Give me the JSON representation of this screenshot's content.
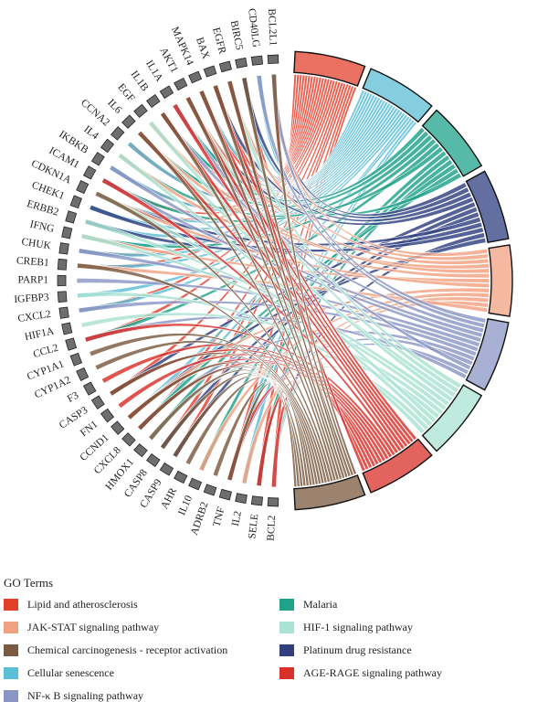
{
  "figure": {
    "genes": [
      "BCL2L1",
      "CD40LG",
      "BIRC5",
      "EGFR",
      "BAX",
      "MAPK14",
      "AKT1",
      "IL1A",
      "IL1B",
      "EGF",
      "IL6",
      "CCNA2",
      "IL4",
      "IKBKB",
      "ICAM1",
      "CDKN1A",
      "CHEK1",
      "ERBB2",
      "IFNG",
      "CHUK",
      "CREB1",
      "PARP1",
      "IGFBP3",
      "CXCL2",
      "HIF1A",
      "CCL2",
      "CYP1A1",
      "CYP1A2",
      "F3",
      "CASP3",
      "FN1",
      "CCND1",
      "CXCL8",
      "HMOX1",
      "CASP8",
      "CASP9",
      "AHR",
      "IL10",
      "ADRB2",
      "TNF",
      "IL2",
      "SELE",
      "BCL2"
    ],
    "gene_block_color": "#6e6e6e",
    "pathways_clockwise": [
      {
        "key": "lipid",
        "color": "#e3402c"
      },
      {
        "key": "cellular",
        "color": "#5bbdd6"
      },
      {
        "key": "malaria",
        "color": "#1fa28a"
      },
      {
        "key": "platinum",
        "color": "#2f3f80"
      },
      {
        "key": "jakstat",
        "color": "#f1a283"
      },
      {
        "key": "nfkb",
        "color": "#8b96c4"
      },
      {
        "key": "hif1",
        "color": "#a9e3d3"
      },
      {
        "key": "agerage",
        "color": "#d9302a"
      },
      {
        "key": "chemical",
        "color": "#7a5a40"
      }
    ],
    "links": {
      "lipid": [
        "BCL2L1",
        "BIRC5",
        "BAX",
        "MAPK14",
        "AKT1",
        "IL1A",
        "IL1B",
        "IL6",
        "CCNA2",
        "IKBKB",
        "ICAM1",
        "CDKN1A",
        "CHUK",
        "CREB1",
        "CXCL2",
        "CCL2",
        "CASP3",
        "CXCL8",
        "CASP8",
        "CASP9",
        "TNF",
        "SELE",
        "BCL2"
      ],
      "cellular": [
        "CD40LG",
        "BIRC5",
        "EGFR",
        "MAPK14",
        "AKT1",
        "IL1A",
        "IL1B",
        "IL6",
        "CCNA2",
        "IKBKB",
        "CDKN1A",
        "CHEK1",
        "ERBB2",
        "IFNG",
        "CHUK",
        "CREB1",
        "IGFBP3",
        "CXCL2",
        "CXCL8",
        "CCND1",
        "TNF",
        "IL2"
      ],
      "malaria": [
        "IL1B",
        "IL6",
        "ICAM1",
        "IFNG",
        "CCL2",
        "IL4",
        "IL10",
        "TNF",
        "SELE",
        "HMOX1",
        "CXCL8",
        "IL1A"
      ],
      "platinum": [
        "BCL2L1",
        "BIRC5",
        "BAX",
        "AKT1",
        "CASP3",
        "CASP8",
        "CASP9",
        "CDKN1A",
        "ERBB2",
        "CHEK1",
        "BCL2",
        "CCND1"
      ],
      "jakstat": [
        "BCL2L1",
        "EGFR",
        "AKT1",
        "IL6",
        "EGF",
        "IL4",
        "IFNG",
        "CDKN1A",
        "CCND1",
        "IL10",
        "IL2",
        "BCL2",
        "CREB1"
      ],
      "nfkb": [
        "BCL2L1",
        "CD40LG",
        "IL1B",
        "IKBKB",
        "ICAM1",
        "CHUK",
        "PARP1",
        "CXCL2",
        "CXCL8",
        "TNF",
        "IL1A",
        "BCL2",
        "CCL2"
      ],
      "hif1": [
        "EGFR",
        "AKT1",
        "IL6",
        "EGF",
        "ERBB2",
        "IFNG",
        "HIF1A",
        "HMOX1",
        "IL4",
        "CDKN1A",
        "BCL2",
        "IGFBP3"
      ],
      "agerage": [
        "BAX",
        "MAPK14",
        "AKT1",
        "IL1A",
        "IL1B",
        "IL6",
        "ICAM1",
        "CCL2",
        "F3",
        "CASP3",
        "FN1",
        "CXCL8",
        "CCND1",
        "TNF",
        "SELE",
        "BCL2",
        "EGFR"
      ],
      "chemical": [
        "BCL2L1",
        "BIRC5",
        "BAX",
        "EGFR",
        "MAPK14",
        "AKT1",
        "IL1B",
        "IL6",
        "CDKN1A",
        "CREB1",
        "CYP1A1",
        "CYP1A2",
        "CASP3",
        "CCND1",
        "CXCL8",
        "AHR",
        "ADRB2",
        "CASP8",
        "HMOX1",
        "CASP9",
        "TNF"
      ]
    }
  },
  "legend": {
    "title": "GO Terms",
    "items": [
      {
        "label": "Lipid and atherosclerosis",
        "color": "#e3402c"
      },
      {
        "label": "Malaria",
        "color": "#1fa28a"
      },
      {
        "label": "JAK-STAT signaling pathway",
        "color": "#f1a283"
      },
      {
        "label": "HIF-1 signaling pathway",
        "color": "#a9e3d3"
      },
      {
        "label": "Chemical carcinogenesis - receptor activation",
        "color": "#7a5a40"
      },
      {
        "label": "Platinum drug resistance",
        "color": "#2f3f80"
      },
      {
        "label": "Cellular senescence",
        "color": "#5bbdd6"
      },
      {
        "label": "AGE-RAGE signaling pathway",
        "color": "#d9302a"
      },
      {
        "label": "NF-κ B signaling pathway",
        "color": "#8b96c4"
      }
    ]
  }
}
